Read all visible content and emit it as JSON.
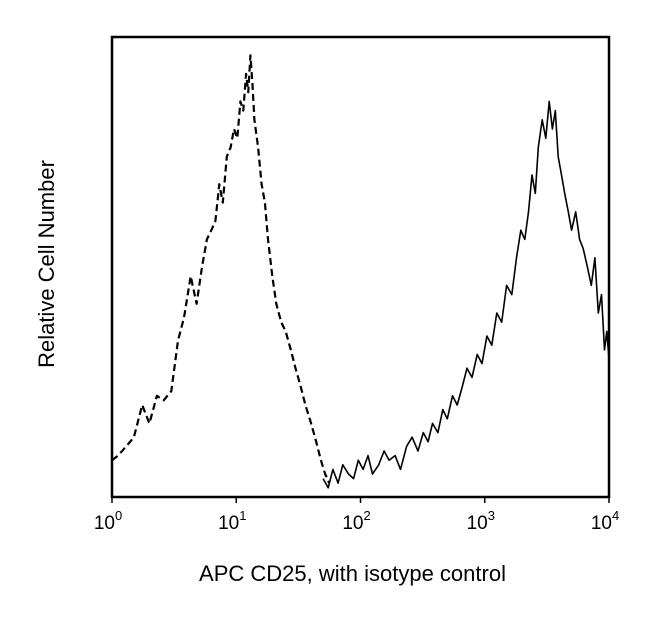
{
  "chart_data": {
    "type": "line",
    "title": "",
    "xlabel": "APC CD25, with isotype control",
    "ylabel": "Relative Cell Number",
    "x_scale": "log",
    "xlim": [
      1,
      10000
    ],
    "ylim": [
      0,
      100
    ],
    "grid": false,
    "x_ticks": [
      {
        "base": "10",
        "exp": "0"
      },
      {
        "base": "10",
        "exp": "1"
      },
      {
        "base": "10",
        "exp": "2"
      },
      {
        "base": "10",
        "exp": "3"
      },
      {
        "base": "10",
        "exp": "4"
      }
    ],
    "series": [
      {
        "style": "dashed",
        "x": [
          1.0,
          1.12,
          1.3,
          1.5,
          1.75,
          2.0,
          2.3,
          2.6,
          3.0,
          3.4,
          3.8,
          4.3,
          4.8,
          5.3,
          5.8,
          6.3,
          6.8,
          7.3,
          7.8,
          8.4,
          9.0,
          9.6,
          10.2,
          10.8,
          11.4,
          12.0,
          12.5,
          13.0,
          13.5,
          14.0,
          15.0,
          16.0,
          17.0,
          18.0,
          19.5,
          21.0,
          23.0,
          25.0,
          27.5,
          30.0,
          33.0,
          36.0,
          40.0,
          44.0,
          48.0,
          52.0,
          56.0
        ],
        "y": [
          8,
          9,
          11,
          13,
          20,
          16,
          22,
          21,
          23,
          34,
          39,
          48,
          42,
          50,
          56,
          58,
          60,
          68,
          64,
          74,
          76,
          80,
          78,
          86,
          84,
          92,
          88,
          96,
          90,
          82,
          76,
          68,
          64,
          56,
          48,
          42,
          38,
          36,
          32,
          28,
          24,
          20,
          16,
          12,
          8,
          5,
          3
        ]
      },
      {
        "style": "solid",
        "x": [
          50,
          55,
          60,
          66,
          72,
          80,
          88,
          96,
          105,
          115,
          125,
          140,
          155,
          170,
          190,
          210,
          235,
          260,
          290,
          320,
          350,
          380,
          420,
          460,
          500,
          550,
          600,
          660,
          720,
          790,
          870,
          950,
          1040,
          1140,
          1250,
          1370,
          1500,
          1650,
          1800,
          1950,
          2100,
          2250,
          2400,
          2550,
          2700,
          2900,
          3100,
          3300,
          3500,
          3700,
          3900,
          4150,
          4400,
          4700,
          5000,
          5400,
          5800,
          6200,
          6700,
          7200,
          7700,
          8200,
          8700,
          9200,
          9600,
          10000
        ],
        "y": [
          4,
          2,
          6,
          3,
          7,
          5,
          4,
          8,
          6,
          9,
          5,
          7,
          10,
          8,
          9,
          6,
          11,
          13,
          10,
          14,
          12,
          16,
          14,
          19,
          17,
          22,
          20,
          24,
          28,
          26,
          31,
          29,
          35,
          33,
          40,
          38,
          46,
          44,
          52,
          58,
          56,
          62,
          70,
          66,
          76,
          82,
          78,
          86,
          80,
          84,
          74,
          70,
          66,
          62,
          58,
          62,
          56,
          54,
          50,
          46,
          52,
          40,
          44,
          32,
          36,
          30
        ]
      }
    ]
  }
}
